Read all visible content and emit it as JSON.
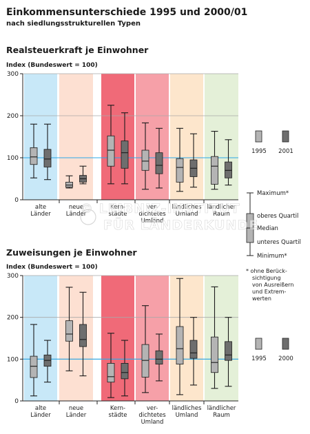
{
  "title": "Einkommensunterschiede 1995 und 2000/01",
  "subtitle": "nach siedlungsstrukturellen Typen",
  "colors": {
    "band_alte": "#c8e8f8",
    "band_neue": "#fde0d2",
    "band_kern": "#f06a78",
    "band_verd": "#f6a0a8",
    "band_laend": "#fde6cc",
    "band_laendr": "#e4f0d8",
    "box_light": "#b4b4b4",
    "box_dark": "#6e6e6e",
    "ref_line": "#2aa8e8",
    "grid": "#a8a8a8"
  },
  "categories": [
    "alte Länder",
    "neue Länder",
    "Kern-städte",
    "ver-dichtetes Umland",
    "ländliches Umland",
    "ländlicher Raum"
  ],
  "category_label_lines": [
    [
      "alte",
      "Länder"
    ],
    [
      "neue",
      "Länder"
    ],
    [
      "Kern-",
      "städte"
    ],
    [
      "ver-",
      "dichtetes",
      "Umland"
    ],
    [
      "ländliches",
      "Umland"
    ],
    [
      "ländlicher",
      "Raum"
    ]
  ],
  "legend": {
    "maximum": "Maximum*",
    "oberes": "oberes Quartil",
    "median": "Median",
    "unteres": "unteres Quartil",
    "minimum": "Minimum*",
    "note_lines": [
      "* ohne  Berück-",
      "sichtigung",
      "von Ausreißern",
      "und Extrem-",
      "werten"
    ]
  },
  "watermark_lines": [
    "© LEIBNIZ-INSTITUT",
    "FÜR LÄNDERKUNDE"
  ],
  "chart_data": [
    {
      "type": "box",
      "heading": "Realsteuerkraft je Einwohner",
      "ylabel": "Index (Bundeswert = 100)",
      "ylim": [
        0,
        300
      ],
      "yticks": [
        0,
        100,
        200,
        300
      ],
      "reference_value": 100,
      "series_names": [
        "1995",
        "2001"
      ],
      "categories": [
        "alte Länder",
        "neue Länder",
        "Kern-städte",
        "ver-dichtetes Umland",
        "ländliches Umland",
        "ländlicher Raum"
      ],
      "boxes": [
        [
          {
            "min": 52,
            "q1": 84,
            "median": 102,
            "q3": 124,
            "max": 180
          },
          {
            "min": 48,
            "q1": 78,
            "median": 97,
            "q3": 120,
            "max": 180
          }
        ],
        [
          {
            "min": 28,
            "q1": 30,
            "median": 35,
            "q3": 42,
            "max": 57
          },
          {
            "min": 38,
            "q1": 42,
            "median": 50,
            "q3": 58,
            "max": 80
          }
        ],
        [
          {
            "min": 38,
            "q1": 80,
            "median": 118,
            "q3": 152,
            "max": 225
          },
          {
            "min": 38,
            "q1": 75,
            "median": 112,
            "q3": 140,
            "max": 207
          }
        ],
        [
          {
            "min": 25,
            "q1": 70,
            "median": 92,
            "q3": 118,
            "max": 183
          },
          {
            "min": 28,
            "q1": 62,
            "median": 82,
            "q3": 112,
            "max": 170
          }
        ],
        [
          {
            "min": 20,
            "q1": 42,
            "median": 77,
            "q3": 98,
            "max": 170
          },
          {
            "min": 30,
            "q1": 55,
            "median": 75,
            "q3": 95,
            "max": 157
          }
        ],
        [
          {
            "min": 25,
            "q1": 37,
            "median": 80,
            "q3": 103,
            "max": 163
          },
          {
            "min": 35,
            "q1": 52,
            "median": 70,
            "q3": 90,
            "max": 143
          }
        ]
      ]
    },
    {
      "type": "box",
      "heading": "Zuweisungen je Einwohner",
      "ylabel": "Index (Bundeswert = 100)",
      "ylim": [
        0,
        300
      ],
      "yticks": [
        0,
        100,
        200,
        300
      ],
      "reference_value": 100,
      "series_names": [
        "1995",
        "2000"
      ],
      "categories": [
        "alte Länder",
        "neue Länder",
        "Kern-städte",
        "ver-dichtetes Umland",
        "ländliches Umland",
        "ländlicher Raum"
      ],
      "boxes": [
        [
          {
            "min": 12,
            "q1": 56,
            "median": 83,
            "q3": 107,
            "max": 183
          },
          {
            "min": 45,
            "q1": 83,
            "median": 97,
            "q3": 110,
            "max": 145
          }
        ],
        [
          {
            "min": 72,
            "q1": 143,
            "median": 160,
            "q3": 192,
            "max": 272
          },
          {
            "min": 60,
            "q1": 130,
            "median": 147,
            "q3": 183,
            "max": 260
          }
        ],
        [
          {
            "min": 8,
            "q1": 45,
            "median": 58,
            "q3": 90,
            "max": 162
          },
          {
            "min": 12,
            "q1": 53,
            "median": 68,
            "q3": 90,
            "max": 145
          }
        ],
        [
          {
            "min": 20,
            "q1": 57,
            "median": 97,
            "q3": 135,
            "max": 228
          },
          {
            "min": 48,
            "q1": 88,
            "median": 100,
            "q3": 120,
            "max": 160
          }
        ],
        [
          {
            "min": 15,
            "q1": 88,
            "median": 125,
            "q3": 178,
            "max": 293
          },
          {
            "min": 38,
            "q1": 102,
            "median": 115,
            "q3": 145,
            "max": 200
          }
        ],
        [
          {
            "min": 30,
            "q1": 68,
            "median": 92,
            "q3": 153,
            "max": 273
          },
          {
            "min": 35,
            "q1": 97,
            "median": 110,
            "q3": 142,
            "max": 200
          }
        ]
      ]
    }
  ]
}
